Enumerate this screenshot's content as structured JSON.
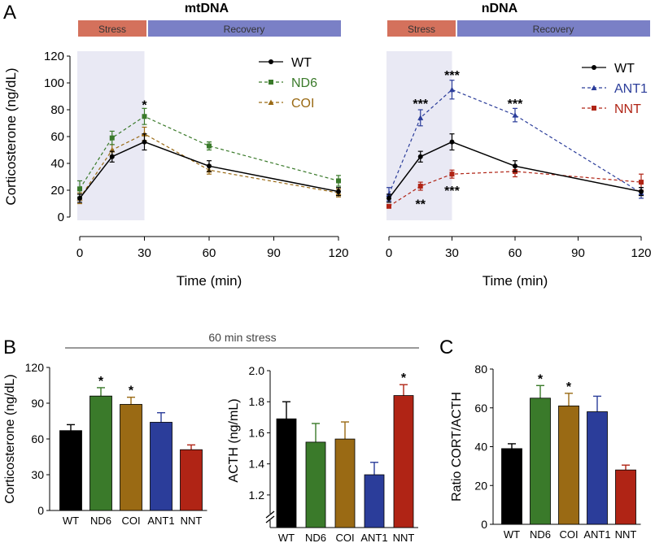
{
  "panels": {
    "A": "A",
    "B": "B",
    "C": "C"
  },
  "figure_text": {
    "mtdna_title": "mtDNA",
    "ndna_title": "nDNA",
    "stress_label": "Stress",
    "recovery_label": "Recovery",
    "stress_60_label": "60 min stress"
  },
  "colors": {
    "WT": "#000000",
    "ND6": "#3a7a2a",
    "COI": "#9a6a14",
    "ANT1": "#2b3d9a",
    "NNT": "#b02415",
    "stress_bar": "#d4715c",
    "recovery_bar": "#7a80c6",
    "stress_shade": "#e9e9f4"
  },
  "chart_data": [
    {
      "id": "A-left",
      "type": "line",
      "title": "mtDNA",
      "xlabel": "Time (min)",
      "ylabel": "Corticosterone (ng/dL)",
      "xlim": [
        0,
        120
      ],
      "ylim": [
        0,
        120
      ],
      "xticks": [
        0,
        30,
        60,
        90,
        120
      ],
      "yticks": [
        0,
        20,
        40,
        60,
        80,
        100,
        120
      ],
      "legend": "top-right",
      "stress_window": [
        0,
        30
      ],
      "series": [
        {
          "name": "WT",
          "style": "solid",
          "marker": "circle",
          "x": [
            0,
            15,
            30,
            60,
            120
          ],
          "y": [
            14,
            45,
            56,
            38,
            19
          ],
          "err": [
            3,
            4,
            6,
            4,
            3
          ]
        },
        {
          "name": "ND6",
          "style": "dashed",
          "marker": "square",
          "x": [
            0,
            15,
            30,
            60,
            120
          ],
          "y": [
            21,
            59,
            75,
            53,
            27
          ],
          "err": [
            6,
            5,
            6,
            3,
            4
          ]
        },
        {
          "name": "COI",
          "style": "dashed",
          "marker": "triangle",
          "x": [
            0,
            15,
            30,
            60,
            120
          ],
          "y": [
            14,
            50,
            62,
            35,
            18
          ],
          "err": [
            4,
            4,
            5,
            3,
            3
          ]
        }
      ],
      "annotations": [
        {
          "text": "*",
          "x": 30,
          "y": 84
        }
      ]
    },
    {
      "id": "A-right",
      "type": "line",
      "title": "nDNA",
      "xlabel": "Time (min)",
      "ylabel": "",
      "xlim": [
        0,
        120
      ],
      "ylim": [
        0,
        120
      ],
      "xticks": [
        0,
        30,
        60,
        90,
        120
      ],
      "legend": "top-right",
      "stress_window": [
        0,
        30
      ],
      "series": [
        {
          "name": "WT",
          "style": "solid",
          "marker": "circle",
          "x": [
            0,
            15,
            30,
            60,
            120
          ],
          "y": [
            14,
            45,
            56,
            38,
            19
          ],
          "err": [
            3,
            4,
            6,
            4,
            3
          ]
        },
        {
          "name": "ANT1",
          "style": "dashed",
          "marker": "triangle",
          "x": [
            0,
            15,
            30,
            60,
            120
          ],
          "y": [
            17,
            74,
            95,
            76,
            18
          ],
          "err": [
            5,
            6,
            7,
            5,
            4
          ]
        },
        {
          "name": "NNT",
          "style": "dashed",
          "marker": "square",
          "x": [
            0,
            15,
            30,
            60,
            120
          ],
          "y": [
            8,
            23,
            32,
            34,
            26
          ],
          "err": [
            1,
            3,
            3,
            4,
            6
          ]
        }
      ],
      "annotations": [
        {
          "text": "***",
          "x": 15,
          "y": 85
        },
        {
          "text": "***",
          "x": 30,
          "y": 106
        },
        {
          "text": "***",
          "x": 60,
          "y": 85
        },
        {
          "text": "**",
          "x": 15,
          "y": 10
        },
        {
          "text": "***",
          "x": 30,
          "y": 20
        }
      ]
    },
    {
      "id": "B-left",
      "type": "bar",
      "title": "",
      "xlabel": "",
      "ylabel": "Corticosterone (ng/dL)",
      "categories": [
        "WT",
        "ND6",
        "COI",
        "ANT1",
        "NNT"
      ],
      "values": [
        67,
        96,
        89,
        74,
        51
      ],
      "err": [
        5,
        7,
        6,
        8,
        4
      ],
      "ylim": [
        0,
        120
      ],
      "yticks": [
        0,
        30,
        60,
        90,
        120
      ],
      "annotations": [
        {
          "text": "*",
          "category": "ND6"
        },
        {
          "text": "*",
          "category": "COI"
        }
      ]
    },
    {
      "id": "B-right",
      "type": "bar",
      "title": "",
      "xlabel": "",
      "ylabel": "ACTH (ng/mL)",
      "categories": [
        "WT",
        "ND6",
        "COI",
        "ANT1",
        "NNT"
      ],
      "values": [
        1.69,
        1.54,
        1.56,
        1.33,
        1.84
      ],
      "err": [
        0.11,
        0.12,
        0.11,
        0.08,
        0.07
      ],
      "ylim": [
        1.1,
        2.0
      ],
      "yticks": [
        1.2,
        1.4,
        1.6,
        1.8,
        2.0
      ],
      "axis_break": true,
      "annotations": [
        {
          "text": "*",
          "category": "NNT"
        }
      ]
    },
    {
      "id": "C",
      "type": "bar",
      "title": "",
      "xlabel": "",
      "ylabel": "Ratio CORT/ACTH",
      "categories": [
        "WT",
        "ND6",
        "COI",
        "ANT1",
        "NNT"
      ],
      "values": [
        39,
        65,
        61,
        58,
        28
      ],
      "err": [
        2.5,
        6.5,
        6.5,
        8,
        2.5
      ],
      "ylim": [
        0,
        80
      ],
      "yticks": [
        0,
        20,
        40,
        60,
        80
      ],
      "annotations": [
        {
          "text": "*",
          "category": "ND6"
        },
        {
          "text": "*",
          "category": "COI"
        }
      ]
    }
  ]
}
